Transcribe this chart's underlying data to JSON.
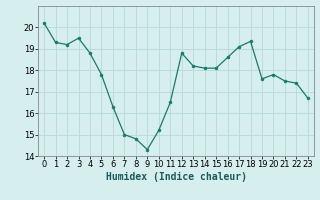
{
  "x": [
    0,
    1,
    2,
    3,
    4,
    5,
    6,
    7,
    8,
    9,
    10,
    11,
    12,
    13,
    14,
    15,
    16,
    17,
    18,
    19,
    20,
    21,
    22,
    23
  ],
  "y": [
    20.2,
    19.3,
    19.2,
    19.5,
    18.8,
    17.8,
    16.3,
    15.0,
    14.8,
    14.3,
    15.2,
    16.5,
    18.8,
    18.2,
    18.1,
    18.1,
    18.6,
    19.1,
    19.35,
    17.6,
    17.8,
    17.5,
    17.4,
    16.7
  ],
  "line_color": "#1a7a6a",
  "marker": "o",
  "marker_size": 2,
  "bg_color": "#d6eeee",
  "grid_color": "#b8d8d8",
  "xlabel": "Humidex (Indice chaleur)",
  "ylim": [
    14,
    21
  ],
  "xlim": [
    -0.5,
    23.5
  ],
  "yticks": [
    14,
    15,
    16,
    17,
    18,
    19,
    20
  ],
  "xticks": [
    0,
    1,
    2,
    3,
    4,
    5,
    6,
    7,
    8,
    9,
    10,
    11,
    12,
    13,
    14,
    15,
    16,
    17,
    18,
    19,
    20,
    21,
    22,
    23
  ],
  "label_fontsize": 7,
  "tick_fontsize": 6,
  "xlabel_fontsize": 7
}
